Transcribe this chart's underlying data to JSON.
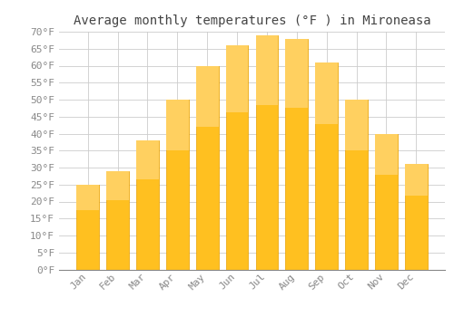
{
  "title": "Average monthly temperatures (°F ) in Mironeasa",
  "months": [
    "Jan",
    "Feb",
    "Mar",
    "Apr",
    "May",
    "Jun",
    "Jul",
    "Aug",
    "Sep",
    "Oct",
    "Nov",
    "Dec"
  ],
  "values": [
    25,
    29,
    38,
    50,
    60,
    66,
    69,
    68,
    61,
    50,
    40,
    31
  ],
  "bar_color_top": "#FFC020",
  "bar_color_bottom": "#F5A623",
  "bar_edge_color": "#E8A000",
  "background_color": "#FFFFFF",
  "grid_color": "#CCCCCC",
  "ylim": [
    0,
    70
  ],
  "yticks": [
    0,
    5,
    10,
    15,
    20,
    25,
    30,
    35,
    40,
    45,
    50,
    55,
    60,
    65,
    70
  ],
  "title_fontsize": 10,
  "tick_fontsize": 8,
  "tick_color": "#888888",
  "title_color": "#444444"
}
